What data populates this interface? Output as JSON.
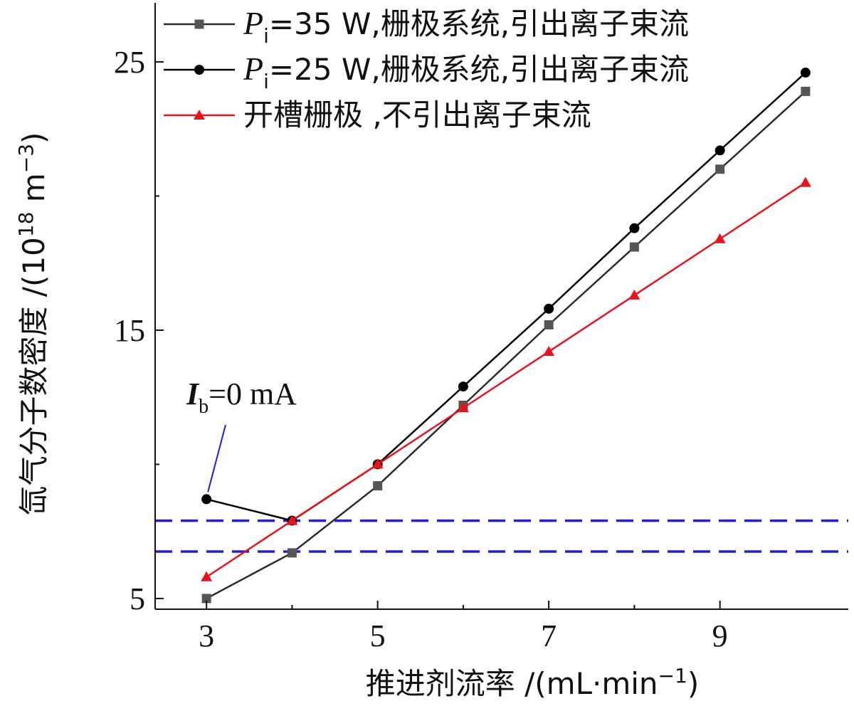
{
  "chart_data": {
    "type": "line",
    "xlabel": {
      "main": "推进剂流率 /(mL·min",
      "sup": "−1",
      "end": ")"
    },
    "ylabel": {
      "main": "氙气分子数密度 /(10",
      "sup1": "18",
      "mid": " m",
      "sup2": "−3",
      "end": ")"
    },
    "xlim": [
      2.4,
      10.5
    ],
    "ylim": [
      4.6,
      27.2
    ],
    "xticks": [
      3,
      5,
      7,
      9
    ],
    "yticks": [
      5,
      15,
      25
    ],
    "grid": false,
    "legend_position": "top-right",
    "series": [
      {
        "name": {
          "sym": "P",
          "sub": "i",
          "rest": "=35 W,栅极系统,引出离子束流"
        },
        "color": "#2b2b2b",
        "marker": "square",
        "x": [
          3,
          4,
          5,
          6,
          7,
          8,
          9,
          10
        ],
        "y": [
          5.0,
          6.7,
          9.2,
          12.2,
          15.2,
          18.1,
          21.0,
          23.9
        ]
      },
      {
        "name": {
          "sym": "P",
          "sub": "i",
          "rest": "=25 W,栅极系统,引出离子束流"
        },
        "color": "#000000",
        "marker": "circle",
        "x": [
          3,
          4,
          5,
          6,
          7,
          8,
          9,
          10
        ],
        "y": [
          8.7,
          7.9,
          10.0,
          12.9,
          15.8,
          18.8,
          21.7,
          24.6
        ]
      },
      {
        "name": {
          "sym": "",
          "sub": "",
          "rest": "开槽栅极 ,不引出离子束流"
        },
        "color": "#e8141b",
        "marker": "triangle",
        "x": [
          3,
          4,
          5,
          6,
          7,
          8,
          9,
          10
        ],
        "y": [
          5.8,
          7.9,
          10.0,
          12.1,
          14.2,
          16.3,
          18.4,
          20.5
        ]
      }
    ],
    "reference_lines": {
      "color": "#1f1fe0",
      "style": "dashed",
      "y": [
        7.9,
        6.75
      ]
    },
    "annotation": {
      "sym": "I",
      "sub": "b",
      "rest": "=0 mA",
      "x": 3,
      "y": 8.7
    }
  }
}
